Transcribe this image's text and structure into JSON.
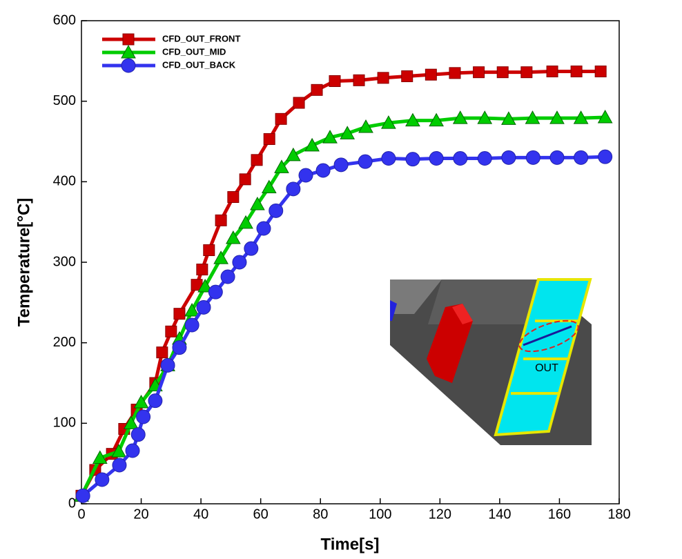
{
  "chart_data": {
    "type": "line",
    "xlabel": "Time[s]",
    "ylabel": "Temperature[°C]",
    "xlim": [
      0,
      180
    ],
    "ylim": [
      0,
      600
    ],
    "xticks": [
      0,
      20,
      40,
      60,
      80,
      100,
      120,
      140,
      160,
      180
    ],
    "yticks": [
      0,
      100,
      200,
      300,
      400,
      500,
      600
    ],
    "grid": false,
    "legend": "upper left",
    "annotations": [
      "OUT"
    ],
    "series": [
      {
        "name": "CFD_OUT_FRONT",
        "color": "#cc0000",
        "marker": "square",
        "x": [
          0,
          4.6,
          10.2,
          14.3,
          18.5,
          24.7,
          27,
          30,
          32.8,
          38.6,
          40.4,
          42.7,
          46.7,
          50.8,
          54.8,
          58.7,
          62.9,
          66.8,
          72.8,
          78.8,
          84.8,
          92.9,
          101,
          109,
          117,
          125,
          133,
          141,
          149,
          157.6,
          165.7,
          173.8
        ],
        "values": [
          10,
          42,
          62,
          93,
          117,
          150,
          188,
          214,
          236,
          272,
          291,
          315,
          352,
          381,
          403,
          427,
          453,
          478,
          498,
          514,
          525,
          526,
          529,
          531,
          533,
          535,
          536,
          536,
          536,
          537,
          537,
          537
        ]
      },
      {
        "name": "CFD_OUT_MID",
        "color": "#00cc00",
        "marker": "triangle",
        "x": [
          0,
          6.2,
          12.5,
          16.6,
          20,
          24.7,
          28.9,
          32.8,
          37,
          41.4,
          46.7,
          50.8,
          55,
          58.9,
          62.8,
          67,
          70.9,
          77.2,
          83.2,
          89,
          95.2,
          102.8,
          110.9,
          118.8,
          126.8,
          135,
          143,
          151,
          159.2,
          167.2,
          175.3
        ],
        "values": [
          10,
          57,
          65,
          100,
          126,
          147,
          172,
          205,
          240,
          270,
          305,
          330,
          349,
          372,
          393,
          418,
          433,
          445,
          455,
          460,
          468,
          473,
          476,
          476,
          479,
          479,
          478,
          479,
          479,
          479,
          480
        ]
      },
      {
        "name": "CFD_OUT_BACK",
        "color": "#3333ee",
        "marker": "circle",
        "x": [
          0.5,
          6.9,
          12.7,
          17.1,
          19,
          20.7,
          24.7,
          28.9,
          32.8,
          37,
          40.9,
          44.9,
          49,
          52.9,
          56.8,
          61,
          65.1,
          70.9,
          75.1,
          80.9,
          86.9,
          95,
          102.8,
          110.9,
          118.8,
          126.8,
          135,
          143,
          151.2,
          159.2,
          167.2,
          175.3
        ],
        "values": [
          10,
          30,
          48,
          66,
          86,
          108,
          128,
          172,
          194,
          222,
          244,
          263,
          282,
          300,
          317,
          342,
          364,
          391,
          408,
          414,
          421,
          425,
          429,
          428,
          429,
          429,
          429,
          430,
          430,
          430,
          430,
          431
        ]
      }
    ]
  }
}
